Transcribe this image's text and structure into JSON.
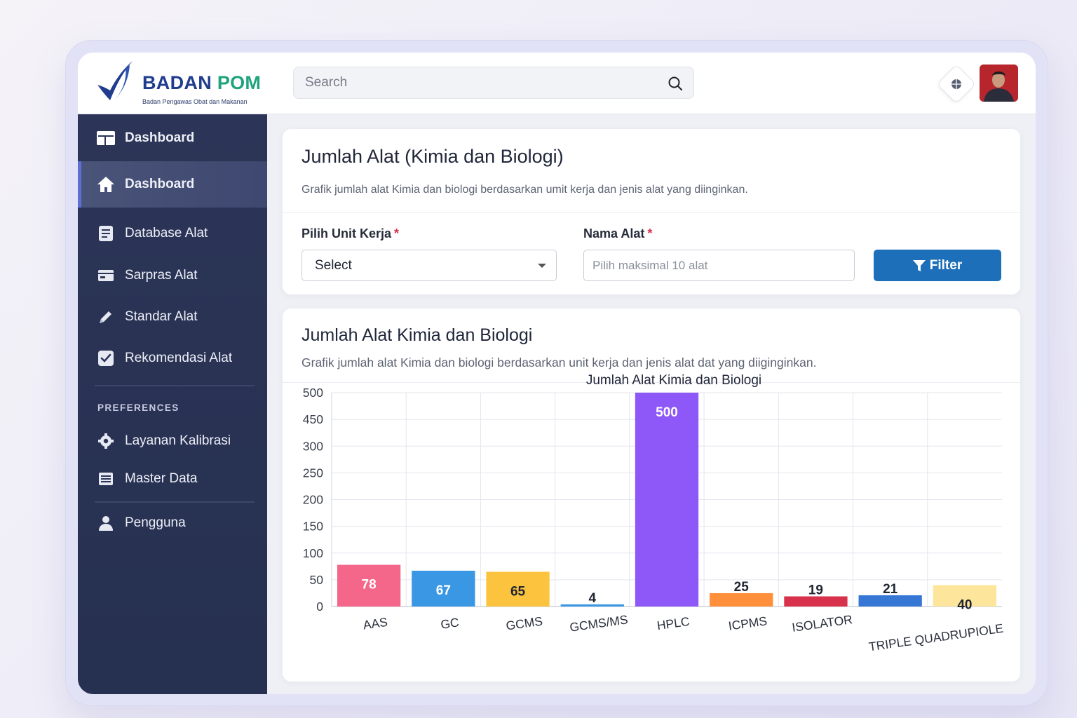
{
  "brand": {
    "name_part1": "BADAN",
    "name_part2": "POM",
    "subtitle": "Badan Pengawas Obat dan Makanan",
    "primary_color": "#1f3c8f",
    "accent_color": "#1ea37a"
  },
  "search": {
    "placeholder": "Search",
    "icon": "search-icon"
  },
  "header": {
    "globe_icon": "globe-icon"
  },
  "sidebar": {
    "items": [
      {
        "label": "Dashboard",
        "icon": "grid-icon"
      },
      {
        "label": "Dashboard",
        "icon": "home-icon"
      },
      {
        "label": "Database Alat",
        "icon": "document-icon"
      },
      {
        "label": "Sarpras Alat",
        "icon": "card-icon"
      },
      {
        "label": "Standar Alat",
        "icon": "pencil-icon"
      },
      {
        "label": "Rekomendasi Alat",
        "icon": "check-square-icon"
      }
    ],
    "section_label": "PREFERENCES",
    "pref_items": [
      {
        "label": "Layanan Kalibrasi",
        "icon": "gear-icon"
      },
      {
        "label": "Master Data",
        "icon": "list-icon"
      }
    ],
    "bottom_items": [
      {
        "label": "Pengguna",
        "icon": "user-icon"
      }
    ]
  },
  "filter_card": {
    "title": "Jumlah Alat (Kimia dan Biologi)",
    "subtitle": "Grafik jumlah alat Kimia dan biologi berdasarkan umit kerja dan jenis alat yang diinginkan.",
    "unit_label": "Pilih Unit Kerja",
    "unit_value": "Select",
    "name_label": "Nama Alat",
    "name_placeholder": "Pilih maksimal 10 alat",
    "required_mark": "*",
    "filter_button": "Filter"
  },
  "chart_card": {
    "title": "Jumlah Alat Kimia dan Biologi",
    "subtitle": "Grafik jumlah alat Kimia dan biologi berdasarkan unit kerja dan jenis alat dat yang diiginginkan."
  },
  "chart_data": {
    "type": "bar",
    "title": "Jumlah Alat Kimia dan Biologi",
    "xlabel": "",
    "ylabel": "",
    "y_ticks": [
      500,
      450,
      300,
      250,
      200,
      150,
      100,
      50,
      0
    ],
    "ylim": [
      0,
      500
    ],
    "grid": true,
    "legend": "none",
    "categories": [
      "AAS",
      "GC",
      "GCMS",
      "GCMS/MS",
      "HPLC",
      "ICPMS",
      "ISOLATOR",
      "",
      "TRIPLE QUADRUPIOLE"
    ],
    "values": [
      78,
      67,
      65,
      4,
      500,
      25,
      19,
      21,
      40
    ],
    "colors": [
      "#f5678a",
      "#3a97e4",
      "#fcc43e",
      "#3a97e4",
      "#8e57f7",
      "#ff8f3a",
      "#d8314c",
      "#3677d6",
      "#fde69b"
    ],
    "label_colors": [
      "#ffffff",
      "#ffffff",
      "#1f2430",
      "#1f2430",
      "#ffffff",
      "#1f2430",
      "#ffffff",
      "#ffffff",
      "#1f2430"
    ]
  }
}
